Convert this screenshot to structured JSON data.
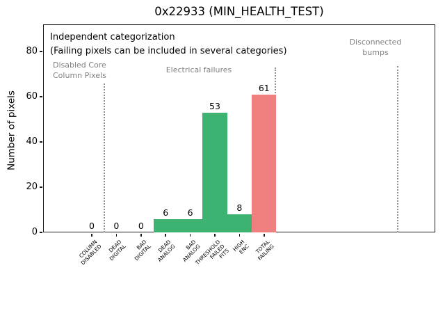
{
  "chart_data": {
    "type": "bar",
    "title": "0x22933 (MIN_HEALTH_TEST)",
    "ylabel": "Number of pixels",
    "xlabel": "",
    "categories": [
      "COLUMN\nDISABLED",
      "DEAD\nDIGITAL",
      "BAD\nDIGITAL",
      "DEAD\nANALOG",
      "BAD\nANALOG",
      "THRESHOLD\nFAILED\nFITS",
      "HIGH\nENC",
      "TOTAL\nFAILING"
    ],
    "values": [
      0,
      0,
      0,
      6,
      6,
      53,
      8,
      61
    ],
    "value_labels": [
      "0",
      "0",
      "0",
      "6",
      "6",
      "53",
      "8",
      "61"
    ],
    "bar_colors": [
      "#3cb371",
      "#3cb371",
      "#3cb371",
      "#3cb371",
      "#3cb371",
      "#3cb371",
      "#3cb371",
      "#f08080"
    ],
    "yticks": [
      0,
      20,
      40,
      60,
      80
    ],
    "ylim": [
      0,
      92
    ],
    "grid": false,
    "legend_position": "none",
    "note": [
      "Independent categorization",
      "(Failing pixels can be included in several categories)"
    ],
    "section_labels": [
      "Disabled Core\nColumn Pixels",
      "Electrical failures",
      "Disconnected\nbumps"
    ]
  },
  "colors": {
    "bar_green": "#3cb371",
    "bar_red": "#f08080",
    "muted_text": "#808080",
    "separator": "#909090",
    "axis": "#1a1a1a"
  }
}
